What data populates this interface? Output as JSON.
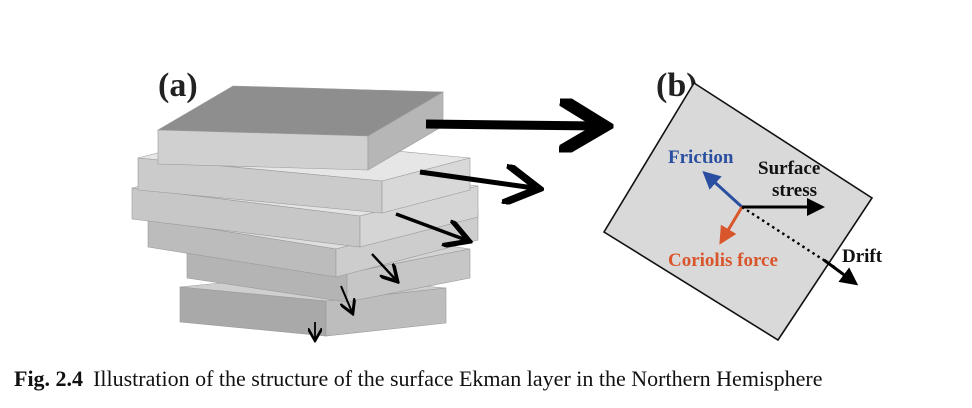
{
  "figure": {
    "panel_a_label": "(a)",
    "panel_b_label": "(b)",
    "labels": {
      "friction": "Friction",
      "surface_stress_line1": "Surface",
      "surface_stress_line2": "stress",
      "coriolis": "Coriolis force",
      "drift": "Drift"
    },
    "colors": {
      "friction": "#2a4fa0",
      "coriolis": "#d9552b",
      "arrow": "#000000",
      "square_fill": "#d9d9d9"
    }
  },
  "caption": {
    "number": "Fig. 2.4",
    "text": "Illustration of the structure of the surface Ekman layer in the Northern Hemisphere"
  }
}
